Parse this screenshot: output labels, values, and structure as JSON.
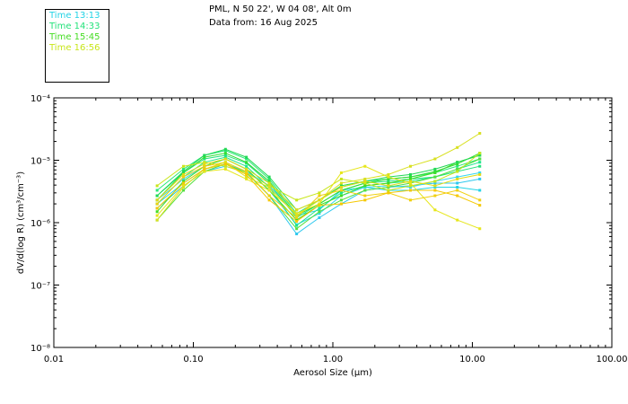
{
  "header": {
    "location": "PML, N 50 22', W 04 08', Alt 0m",
    "date": "Data from: 16 Aug 2025"
  },
  "legend": [
    {
      "label": "Time 13:13",
      "color": "#22d3e6"
    },
    {
      "label": "Time 14:33",
      "color": "#22e27a"
    },
    {
      "label": "Time 15:45",
      "color": "#44dd22"
    },
    {
      "label": "Time 16:56",
      "color": "#c8e61a"
    }
  ],
  "chart_data": {
    "type": "line",
    "xscale": "log",
    "yscale": "log",
    "xlim": [
      0.01,
      100
    ],
    "ylim": [
      1e-08,
      0.0001
    ],
    "xlabel": "Aerosol Size (µm)",
    "ylabel": "dV/d(log R) (cm³/cm⁻³)",
    "x_ticks": [
      {
        "v": 0.01,
        "t": "0.01"
      },
      {
        "v": 0.1,
        "t": "0.10"
      },
      {
        "v": 1,
        "t": "1.00"
      },
      {
        "v": 10,
        "t": "10.00"
      },
      {
        "v": 100,
        "t": "100.00"
      }
    ],
    "y_ticks": [
      {
        "v": 1e-08,
        "t": "10⁻⁸"
      },
      {
        "v": 1e-07,
        "t": "10⁻⁷"
      },
      {
        "v": 1e-06,
        "t": "10⁻⁶"
      },
      {
        "v": 1e-05,
        "t": "10⁻⁵"
      },
      {
        "v": 0.0001,
        "t": "10⁻⁴"
      }
    ],
    "x": [
      0.055,
      0.085,
      0.12,
      0.17,
      0.24,
      0.35,
      0.55,
      0.8,
      1.15,
      1.7,
      2.5,
      3.6,
      5.4,
      7.8,
      11.3
    ],
    "series": [
      {
        "name": "Time 13:13",
        "color": "#22d3e6",
        "values": [
          2e-06,
          4.3e-06,
          7.2e-06,
          8.7e-06,
          6.6e-06,
          3.9e-06,
          1.3e-06,
          1.6e-06,
          3.3e-06,
          3.7e-06,
          3.3e-06,
          3.3e-06,
          3.7e-06,
          3.7e-06,
          3.3e-06
        ]
      },
      {
        "name": "Time 13:13",
        "color": "#2ec8ee",
        "values": [
          1.7e-06,
          3.9e-06,
          6.6e-06,
          8e-06,
          6.3e-06,
          2.7e-06,
          6.6e-07,
          1.2e-06,
          2e-06,
          3.3e-06,
          3.7e-06,
          3.9e-06,
          4.3e-06,
          4.3e-06,
          5e-06
        ]
      },
      {
        "name": "Time 13:13",
        "color": "#33d8f0",
        "values": [
          2.3e-06,
          5e-06,
          8e-06,
          1.05e-05,
          7.2e-06,
          3.3e-06,
          9.3e-07,
          1.4e-06,
          2.7e-06,
          3.7e-06,
          3.9e-06,
          3.7e-06,
          4.6e-06,
          5.4e-06,
          6.3e-06
        ]
      },
      {
        "name": "Time 14:33",
        "color": "#22e27a",
        "values": [
          2.7e-06,
          6.3e-06,
          1.05e-05,
          1.2e-05,
          9e-06,
          4.3e-06,
          1.2e-06,
          2e-06,
          3.3e-06,
          4.3e-06,
          4.6e-06,
          5e-06,
          5.4e-06,
          6.6e-06,
          8e-06
        ]
      },
      {
        "name": "Time 14:33",
        "color": "#1ee68c",
        "values": [
          2e-06,
          5.4e-06,
          9.3e-06,
          1.12e-05,
          8e-06,
          3.7e-06,
          9e-07,
          1.7e-06,
          3e-06,
          3.9e-06,
          4.3e-06,
          4.6e-06,
          5.4e-06,
          7.2e-06,
          9.3e-06
        ]
      },
      {
        "name": "Time 14:33",
        "color": "#28e878",
        "values": [
          3.3e-06,
          7.2e-06,
          1.2e-05,
          1.43e-05,
          1.05e-05,
          5e-06,
          1.4e-06,
          2.3e-06,
          3.7e-06,
          4.6e-06,
          5e-06,
          5.4e-06,
          6.3e-06,
          8e-06,
          1.05e-05
        ]
      },
      {
        "name": "Time 15:45",
        "color": "#44dd22",
        "values": [
          1.5e-06,
          4.6e-06,
          8e-06,
          1.05e-05,
          7.2e-06,
          3.3e-06,
          1.1e-06,
          1.9e-06,
          2.7e-06,
          3.9e-06,
          4.3e-06,
          5e-06,
          6.3e-06,
          9.3e-06,
          1.2e-05
        ]
      },
      {
        "name": "Time 15:45",
        "color": "#33dd33",
        "values": [
          2.3e-06,
          6.3e-06,
          1.12e-05,
          1.3e-05,
          9.3e-06,
          4.6e-06,
          1.3e-06,
          2e-06,
          3.3e-06,
          4.3e-06,
          5e-06,
          5.4e-06,
          6.6e-06,
          8.7e-06,
          1.3e-05
        ]
      },
      {
        "name": "Time 15:45",
        "color": "#55e040",
        "values": [
          1.1e-06,
          3.3e-06,
          6.6e-06,
          8.7e-06,
          6.3e-06,
          2.7e-06,
          8e-07,
          1.5e-06,
          2.3e-06,
          3.3e-06,
          3.7e-06,
          4.3e-06,
          5.4e-06,
          7.2e-06,
          1.05e-05
        ]
      },
      {
        "name": "Time 15:45",
        "color": "#22d955",
        "values": [
          2.7e-06,
          6.6e-06,
          1.2e-05,
          1.5e-05,
          1.12e-05,
          5.4e-06,
          1.6e-06,
          2.3e-06,
          3.9e-06,
          4.6e-06,
          5.4e-06,
          5.9e-06,
          7.2e-06,
          9.3e-06,
          1.2e-05
        ]
      },
      {
        "name": "Time 16:56",
        "color": "#c8e61a",
        "values": [
          3.9e-06,
          8e-06,
          9.3e-06,
          8e-06,
          6.3e-06,
          3.9e-06,
          2.3e-06,
          3e-06,
          5e-06,
          4.3e-06,
          3.3e-06,
          3.9e-06,
          4.6e-06,
          6.6e-06,
          1.3e-05
        ]
      },
      {
        "name": "Time 16:56",
        "color": "#e6e61a",
        "values": [
          1.3e-06,
          3.9e-06,
          6.6e-06,
          7.2e-06,
          5e-06,
          3.3e-06,
          1.4e-06,
          2e-06,
          6.3e-06,
          8e-06,
          5.4e-06,
          4.3e-06,
          1.6e-06,
          1.1e-06,
          8e-07
        ]
      },
      {
        "name": "Time 16:56",
        "color": "#f0d010",
        "values": [
          2e-06,
          5.4e-06,
          8e-06,
          9.3e-06,
          6.6e-06,
          2.7e-06,
          1.2e-06,
          2.7e-06,
          3.3e-06,
          2.7e-06,
          3e-06,
          2.3e-06,
          2.7e-06,
          3.3e-06,
          2.3e-06
        ]
      },
      {
        "name": "Time 16:56",
        "color": "#d8e020",
        "values": [
          1.1e-06,
          3.7e-06,
          7.2e-06,
          9.3e-06,
          5.4e-06,
          3.7e-06,
          1.3e-06,
          2.3e-06,
          4.3e-06,
          5e-06,
          5.9e-06,
          8e-06,
          1.05e-05,
          1.6e-05,
          2.7e-05
        ]
      },
      {
        "name": "Time 16:56",
        "color": "#f5c800",
        "values": [
          1.7e-06,
          4.3e-06,
          7.2e-06,
          8.7e-06,
          5.9e-06,
          2.3e-06,
          1.05e-06,
          1.9e-06,
          2e-06,
          2.3e-06,
          3e-06,
          3.3e-06,
          3.3e-06,
          2.7e-06,
          1.9e-06
        ]
      },
      {
        "name": "Time 16:56",
        "color": "#e0dc15",
        "values": [
          2.3e-06,
          5.9e-06,
          8.7e-06,
          1.05e-05,
          7.2e-06,
          4.3e-06,
          1.6e-06,
          2.3e-06,
          3.7e-06,
          4.6e-06,
          3.9e-06,
          4.6e-06,
          3.9e-06,
          5e-06,
          5.9e-06
        ]
      }
    ]
  }
}
